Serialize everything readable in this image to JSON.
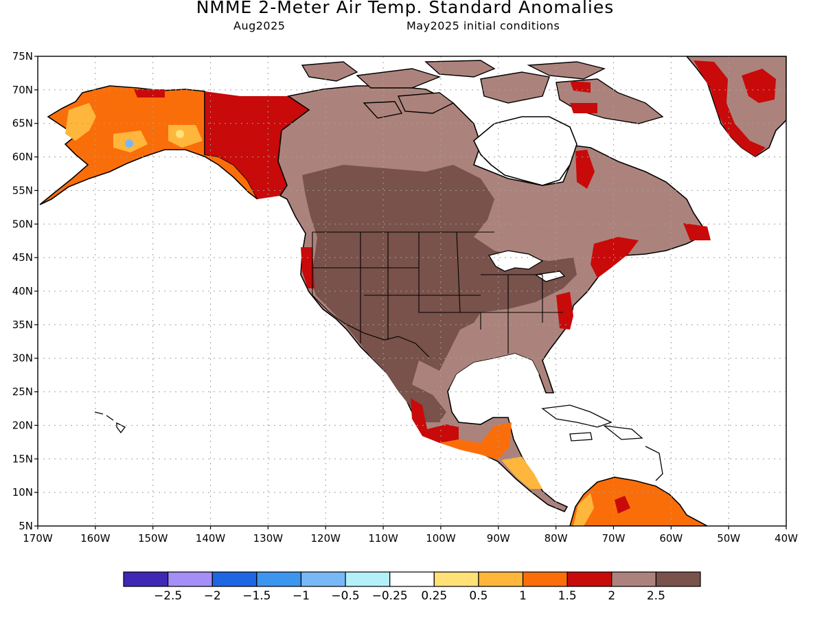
{
  "header": {
    "title": "NMME 2-Meter Air Temp. Standard Anomalies",
    "target_month": "Aug2025",
    "initial_conditions": "May2025 initial conditions"
  },
  "map": {
    "lat_labels": [
      "75N",
      "70N",
      "65N",
      "60N",
      "55N",
      "50N",
      "45N",
      "40N",
      "35N",
      "30N",
      "25N",
      "20N",
      "15N",
      "10N",
      "5N"
    ],
    "lon_labels": [
      "170W",
      "160W",
      "150W",
      "140W",
      "130W",
      "120W",
      "110W",
      "100W",
      "90W",
      "80W",
      "70W",
      "60W",
      "50W",
      "40W"
    ],
    "lat_range": [
      5,
      75
    ],
    "lon_range": [
      -170,
      -40
    ],
    "gridlines": "dotted",
    "ocean_color": "#ffffff",
    "coastline_color": "#000000"
  },
  "colorbar": {
    "colors": [
      "#3f28b4",
      "#a48ef7",
      "#1f66e3",
      "#3c96f0",
      "#78b8f7",
      "#b4f0fa",
      "#ffffff",
      "#ffe178",
      "#ffb63c",
      "#fa6e0a",
      "#c80a0a",
      "#ac837c",
      "#78524b"
    ],
    "tick_labels": [
      "−2.5",
      "−2",
      "−1.5",
      "−1",
      "−0.5",
      "−0.25",
      "0.25",
      "0.5",
      "1",
      "1.5",
      "2",
      "2.5"
    ]
  },
  "legend_colors": {
    "above_2_5": "#78524b",
    "2_to_2_5": "#ac837c",
    "1_5_to_2": "#c80a0a",
    "1_to_1_5": "#fa6e0a",
    "0_5_to_1": "#ffb63c",
    "0_25_to_0_5": "#ffe178"
  }
}
